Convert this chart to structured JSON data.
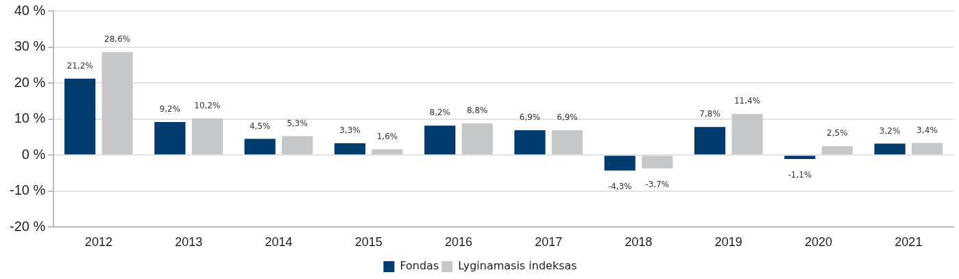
{
  "chart_data": {
    "type": "bar",
    "categories": [
      "2012",
      "2013",
      "2014",
      "2015",
      "2016",
      "2017",
      "2018",
      "2019",
      "2020",
      "2021"
    ],
    "series": [
      {
        "name": "Fondas",
        "color": "#003b6d",
        "values": [
          21.2,
          9.2,
          4.5,
          3.3,
          8.2,
          6.9,
          -4.3,
          7.8,
          -1.1,
          3.2
        ],
        "value_labels": [
          "21,2%",
          "9,2%",
          "4,5%",
          "3,3%",
          "8,2%",
          "6,9%",
          "-4,3%",
          "7,8%",
          "-1,1%",
          "3,2%"
        ]
      },
      {
        "name": "Lyginamasis indeksas",
        "color": "#c6c7c9",
        "values": [
          28.6,
          10.2,
          5.3,
          1.6,
          8.8,
          6.9,
          -3.7,
          11.4,
          2.5,
          3.4
        ],
        "value_labels": [
          "28,6%",
          "10,2%",
          "5,3%",
          "1,6%",
          "8,8%",
          "6,9%",
          "-3,7%",
          "11,4%",
          "2,5%",
          "3,4%"
        ]
      }
    ],
    "ylim": [
      -20,
      40
    ],
    "yticks": [
      {
        "value": -20,
        "label": "-20 %"
      },
      {
        "value": -10,
        "label": "-10 %"
      },
      {
        "value": 0,
        "label": "0 %"
      },
      {
        "value": 10,
        "label": "10 %"
      },
      {
        "value": 20,
        "label": "20 %"
      },
      {
        "value": 30,
        "label": "30 %"
      },
      {
        "value": 40,
        "label": "40 %"
      }
    ],
    "grid": "y",
    "legend": "bottom"
  }
}
